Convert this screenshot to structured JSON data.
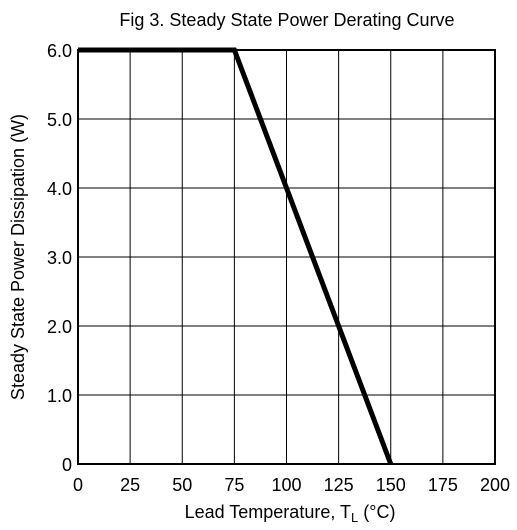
{
  "chart_data": {
    "type": "line",
    "title": "Fig  3. Steady State Power Derating Curve",
    "xlabel": "Lead Temperature, T",
    "xlabel_sub": "L",
    "xlabel_unit": " (°C)",
    "ylabel": "Steady State Power Dissipation (W)",
    "xlim": [
      0,
      200
    ],
    "ylim": [
      0,
      6
    ],
    "grid": true,
    "x_ticks": [
      0,
      25,
      50,
      75,
      100,
      125,
      150,
      175,
      200
    ],
    "x_tick_labels": [
      "0",
      "25",
      "50",
      "75",
      "100",
      "125",
      "150",
      "175",
      "200"
    ],
    "y_ticks": [
      0,
      1,
      2,
      3,
      4,
      5,
      6
    ],
    "y_tick_labels": [
      "0",
      "1.0",
      "2.0",
      "3.0",
      "4.0",
      "5.0",
      "6.0"
    ],
    "series": [
      {
        "x": [
          0,
          75,
          150
        ],
        "y": [
          6.0,
          6.0,
          0
        ],
        "color": "#000000"
      }
    ]
  }
}
